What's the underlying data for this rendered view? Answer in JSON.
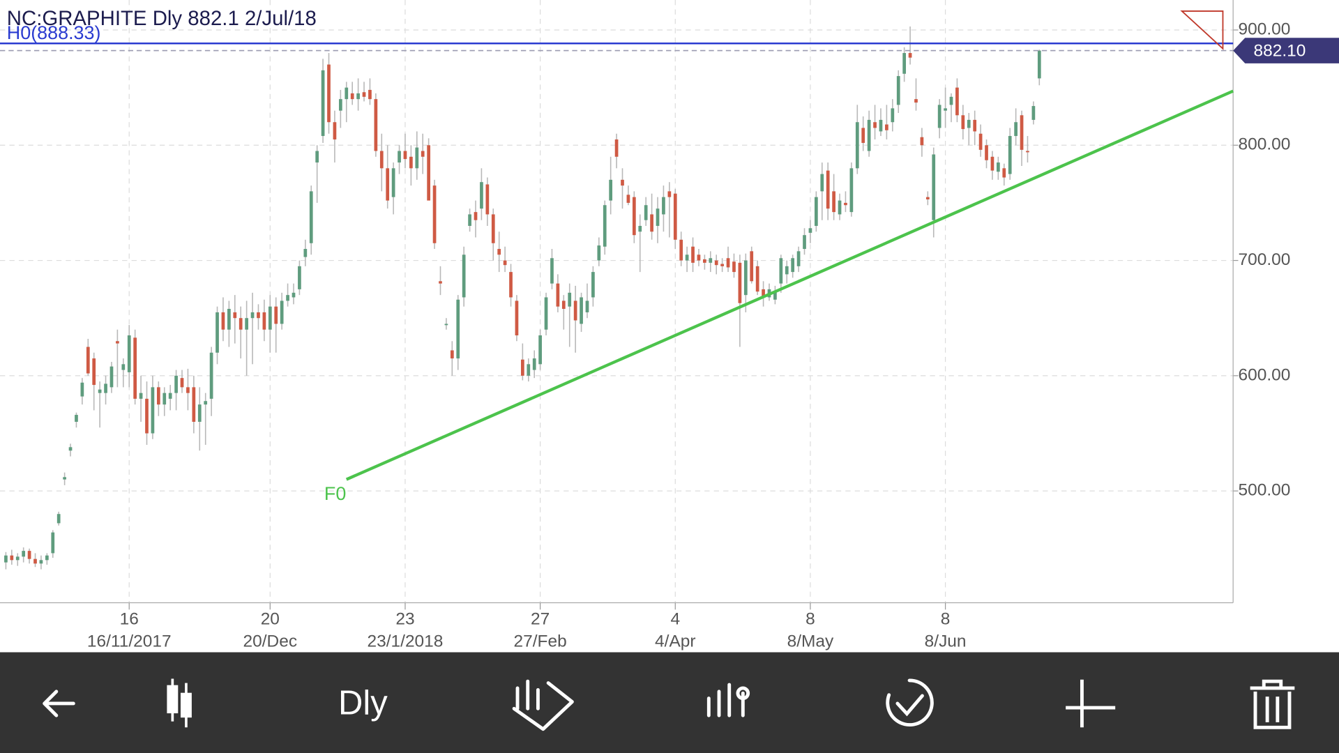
{
  "chart_data": {
    "type": "candlestick",
    "title": "NC:GRAPHITE Dly 882.1 2/Jul/18",
    "ohlc": [
      [
        438,
        447,
        432,
        444
      ],
      [
        444,
        449,
        436,
        440
      ],
      [
        440,
        446,
        435,
        443
      ],
      [
        443,
        451,
        438,
        448
      ],
      [
        448,
        450,
        437,
        441
      ],
      [
        441,
        446,
        434,
        437
      ],
      [
        437,
        444,
        432,
        440
      ],
      [
        440,
        446,
        436,
        444
      ],
      [
        446,
        466,
        442,
        464
      ],
      [
        472,
        482,
        470,
        480
      ],
      [
        510,
        516,
        505,
        512
      ],
      [
        535,
        541,
        530,
        538
      ],
      [
        560,
        568,
        555,
        566
      ],
      [
        582,
        598,
        575,
        594
      ],
      [
        625,
        632,
        600,
        602
      ],
      [
        615,
        620,
        570,
        592
      ],
      [
        585,
        595,
        555,
        588
      ],
      [
        585,
        600,
        575,
        593
      ],
      [
        590,
        612,
        585,
        608
      ],
      [
        630,
        640,
        590,
        628
      ],
      [
        605,
        615,
        590,
        610
      ],
      [
        603,
        644,
        590,
        635
      ],
      [
        633,
        640,
        575,
        580
      ],
      [
        580,
        600,
        560,
        585
      ],
      [
        580,
        595,
        540,
        550
      ],
      [
        550,
        600,
        545,
        590
      ],
      [
        590,
        595,
        565,
        575
      ],
      [
        575,
        590,
        565,
        585
      ],
      [
        580,
        592,
        570,
        585
      ],
      [
        585,
        605,
        570,
        600
      ],
      [
        598,
        605,
        585,
        590
      ],
      [
        590,
        606,
        570,
        585
      ],
      [
        590,
        600,
        550,
        560
      ],
      [
        560,
        590,
        535,
        575
      ],
      [
        575,
        585,
        540,
        578
      ],
      [
        580,
        625,
        565,
        620
      ],
      [
        620,
        660,
        610,
        655
      ],
      [
        655,
        668,
        630,
        640
      ],
      [
        640,
        665,
        625,
        658
      ],
      [
        655,
        670,
        628,
        650
      ],
      [
        650,
        660,
        615,
        640
      ],
      [
        640,
        665,
        600,
        650
      ],
      [
        650,
        672,
        610,
        655
      ],
      [
        655,
        662,
        640,
        650
      ],
      [
        655,
        666,
        630,
        640
      ],
      [
        640,
        670,
        620,
        660
      ],
      [
        660,
        668,
        620,
        645
      ],
      [
        645,
        672,
        640,
        665
      ],
      [
        665,
        680,
        660,
        670
      ],
      [
        668,
        680,
        662,
        672
      ],
      [
        675,
        700,
        670,
        695
      ],
      [
        703,
        718,
        695,
        710
      ],
      [
        715,
        765,
        705,
        760
      ],
      [
        785,
        800,
        750,
        795
      ],
      [
        808,
        875,
        802,
        865
      ],
      [
        870,
        880,
        810,
        820
      ],
      [
        820,
        830,
        785,
        805
      ],
      [
        830,
        848,
        815,
        840
      ],
      [
        840,
        855,
        820,
        850
      ],
      [
        845,
        855,
        835,
        840
      ],
      [
        840,
        858,
        830,
        845
      ],
      [
        846,
        855,
        838,
        842
      ],
      [
        848,
        858,
        835,
        840
      ],
      [
        840,
        845,
        790,
        795
      ],
      [
        795,
        810,
        760,
        780
      ],
      [
        780,
        800,
        745,
        752
      ],
      [
        755,
        785,
        740,
        780
      ],
      [
        785,
        800,
        775,
        795
      ],
      [
        795,
        810,
        780,
        788
      ],
      [
        790,
        800,
        765,
        780
      ],
      [
        780,
        812,
        770,
        798
      ],
      [
        795,
        810,
        775,
        790
      ],
      [
        800,
        806,
        755,
        752
      ],
      [
        765,
        770,
        710,
        715
      ],
      [
        682,
        695,
        670,
        680
      ],
      [
        645,
        650,
        640,
        645
      ],
      [
        622,
        630,
        600,
        615
      ],
      [
        615,
        670,
        605,
        666
      ],
      [
        668,
        712,
        660,
        705
      ],
      [
        730,
        745,
        725,
        740
      ],
      [
        742,
        752,
        720,
        735
      ],
      [
        745,
        780,
        735,
        768
      ],
      [
        766,
        772,
        730,
        740
      ],
      [
        740,
        745,
        700,
        715
      ],
      [
        710,
        725,
        690,
        705
      ],
      [
        700,
        712,
        690,
        696
      ],
      [
        690,
        697,
        660,
        668
      ],
      [
        665,
        670,
        630,
        635
      ],
      [
        614,
        628,
        596,
        600
      ],
      [
        600,
        615,
        595,
        610
      ],
      [
        605,
        622,
        598,
        615
      ],
      [
        610,
        640,
        605,
        635
      ],
      [
        640,
        672,
        635,
        668
      ],
      [
        680,
        710,
        675,
        702
      ],
      [
        680,
        688,
        655,
        660
      ],
      [
        665,
        670,
        640,
        658
      ],
      [
        660,
        680,
        625,
        672
      ],
      [
        665,
        678,
        620,
        648
      ],
      [
        645,
        672,
        638,
        668
      ],
      [
        655,
        680,
        650,
        665
      ],
      [
        668,
        695,
        660,
        690
      ],
      [
        700,
        720,
        695,
        713
      ],
      [
        712,
        752,
        705,
        748
      ],
      [
        752,
        790,
        740,
        770
      ],
      [
        805,
        810,
        780,
        790
      ],
      [
        770,
        780,
        745,
        765
      ],
      [
        757,
        765,
        748,
        750
      ],
      [
        755,
        760,
        715,
        722
      ],
      [
        725,
        740,
        690,
        730
      ],
      [
        735,
        755,
        730,
        748
      ],
      [
        740,
        758,
        718,
        725
      ],
      [
        730,
        755,
        715,
        745
      ],
      [
        740,
        765,
        725,
        755
      ],
      [
        760,
        768,
        720,
        755
      ],
      [
        758,
        762,
        710,
        718
      ],
      [
        718,
        725,
        695,
        700
      ],
      [
        700,
        712,
        690,
        705
      ],
      [
        712,
        720,
        690,
        698
      ],
      [
        705,
        710,
        695,
        700
      ],
      [
        701,
        705,
        692,
        698
      ],
      [
        698,
        708,
        690,
        702
      ],
      [
        700,
        705,
        688,
        696
      ],
      [
        697,
        702,
        690,
        695
      ],
      [
        702,
        712,
        690,
        694
      ],
      [
        699,
        706,
        685,
        690
      ],
      [
        698,
        705,
        625,
        663
      ],
      [
        670,
        706,
        655,
        700
      ],
      [
        708,
        712,
        680,
        682
      ],
      [
        695,
        700,
        670,
        673
      ],
      [
        675,
        682,
        660,
        668
      ],
      [
        668,
        680,
        665,
        675
      ],
      [
        666,
        678,
        662,
        673
      ],
      [
        680,
        705,
        672,
        702
      ],
      [
        688,
        700,
        680,
        695
      ],
      [
        690,
        705,
        685,
        702
      ],
      [
        695,
        712,
        690,
        708
      ],
      [
        710,
        728,
        705,
        722
      ],
      [
        724,
        735,
        715,
        728
      ],
      [
        730,
        760,
        725,
        755
      ],
      [
        760,
        785,
        735,
        775
      ],
      [
        778,
        785,
        735,
        745
      ],
      [
        760,
        775,
        735,
        742
      ],
      [
        740,
        758,
        735,
        752
      ],
      [
        750,
        760,
        742,
        748
      ],
      [
        742,
        785,
        738,
        780
      ],
      [
        780,
        835,
        775,
        820
      ],
      [
        815,
        825,
        795,
        802
      ],
      [
        795,
        830,
        790,
        822
      ],
      [
        820,
        835,
        805,
        815
      ],
      [
        812,
        832,
        808,
        822
      ],
      [
        818,
        835,
        805,
        813
      ],
      [
        820,
        840,
        812,
        832
      ],
      [
        835,
        865,
        828,
        860
      ],
      [
        862,
        885,
        855,
        880
      ],
      [
        880,
        903,
        870,
        876
      ],
      [
        840,
        858,
        830,
        837
      ],
      [
        807,
        815,
        790,
        800
      ],
      [
        755,
        760,
        748,
        753
      ],
      [
        735,
        798,
        720,
        792
      ],
      [
        815,
        840,
        806,
        835
      ],
      [
        830,
        850,
        815,
        832
      ],
      [
        835,
        845,
        820,
        842
      ],
      [
        850,
        858,
        820,
        826
      ],
      [
        826,
        835,
        805,
        814
      ],
      [
        815,
        828,
        800,
        822
      ],
      [
        822,
        830,
        800,
        812
      ],
      [
        810,
        818,
        790,
        796
      ],
      [
        800,
        805,
        780,
        787
      ],
      [
        790,
        795,
        770,
        778
      ],
      [
        777,
        790,
        770,
        785
      ],
      [
        780,
        784,
        765,
        772
      ],
      [
        775,
        815,
        770,
        808
      ],
      [
        808,
        832,
        800,
        820
      ],
      [
        826,
        830,
        782,
        796
      ],
      [
        795,
        808,
        785,
        794
      ],
      [
        822,
        838,
        818,
        834
      ],
      [
        858,
        883,
        852,
        882.1
      ]
    ],
    "up_color": "#5f9c7e",
    "down_color": "#cf5a44",
    "wick_color": "#b8b8b8",
    "ylim": [
      403,
      926
    ],
    "yticks": [
      {
        "value": 500,
        "label": "500.00"
      },
      {
        "value": 600,
        "label": "600.00"
      },
      {
        "value": 700,
        "label": "700.00"
      },
      {
        "value": 800,
        "label": "800.00"
      },
      {
        "value": 900,
        "label": "900.00"
      }
    ],
    "xlim": [
      -1,
      209
    ],
    "xticks": [
      {
        "value": 21,
        "label": "16"
      },
      {
        "value": 45,
        "label": "20"
      },
      {
        "value": 68,
        "label": "23"
      },
      {
        "value": 91,
        "label": "27"
      },
      {
        "value": 114,
        "label": "4"
      },
      {
        "value": 137,
        "label": "8"
      },
      {
        "value": 160,
        "label": "8"
      }
    ],
    "xtick_dates": [
      "16/11/2017",
      "20/Dec",
      "23/1/2018",
      "27/Feb",
      "4/Apr",
      "8/May",
      "8/Jun"
    ],
    "grid": true,
    "last_price": {
      "value": 882.1,
      "label": "882.10",
      "color": "#3b3878"
    },
    "lines": [
      {
        "name": "H0(888.33)",
        "value": 888.33,
        "color": "#2a3bd0"
      }
    ],
    "trendline": {
      "name": "F0",
      "x": [
        58,
        209
      ],
      "values": [
        510,
        847
      ],
      "color": "#4cc34c"
    }
  },
  "toolbar": {
    "timeframe": "Dly"
  }
}
